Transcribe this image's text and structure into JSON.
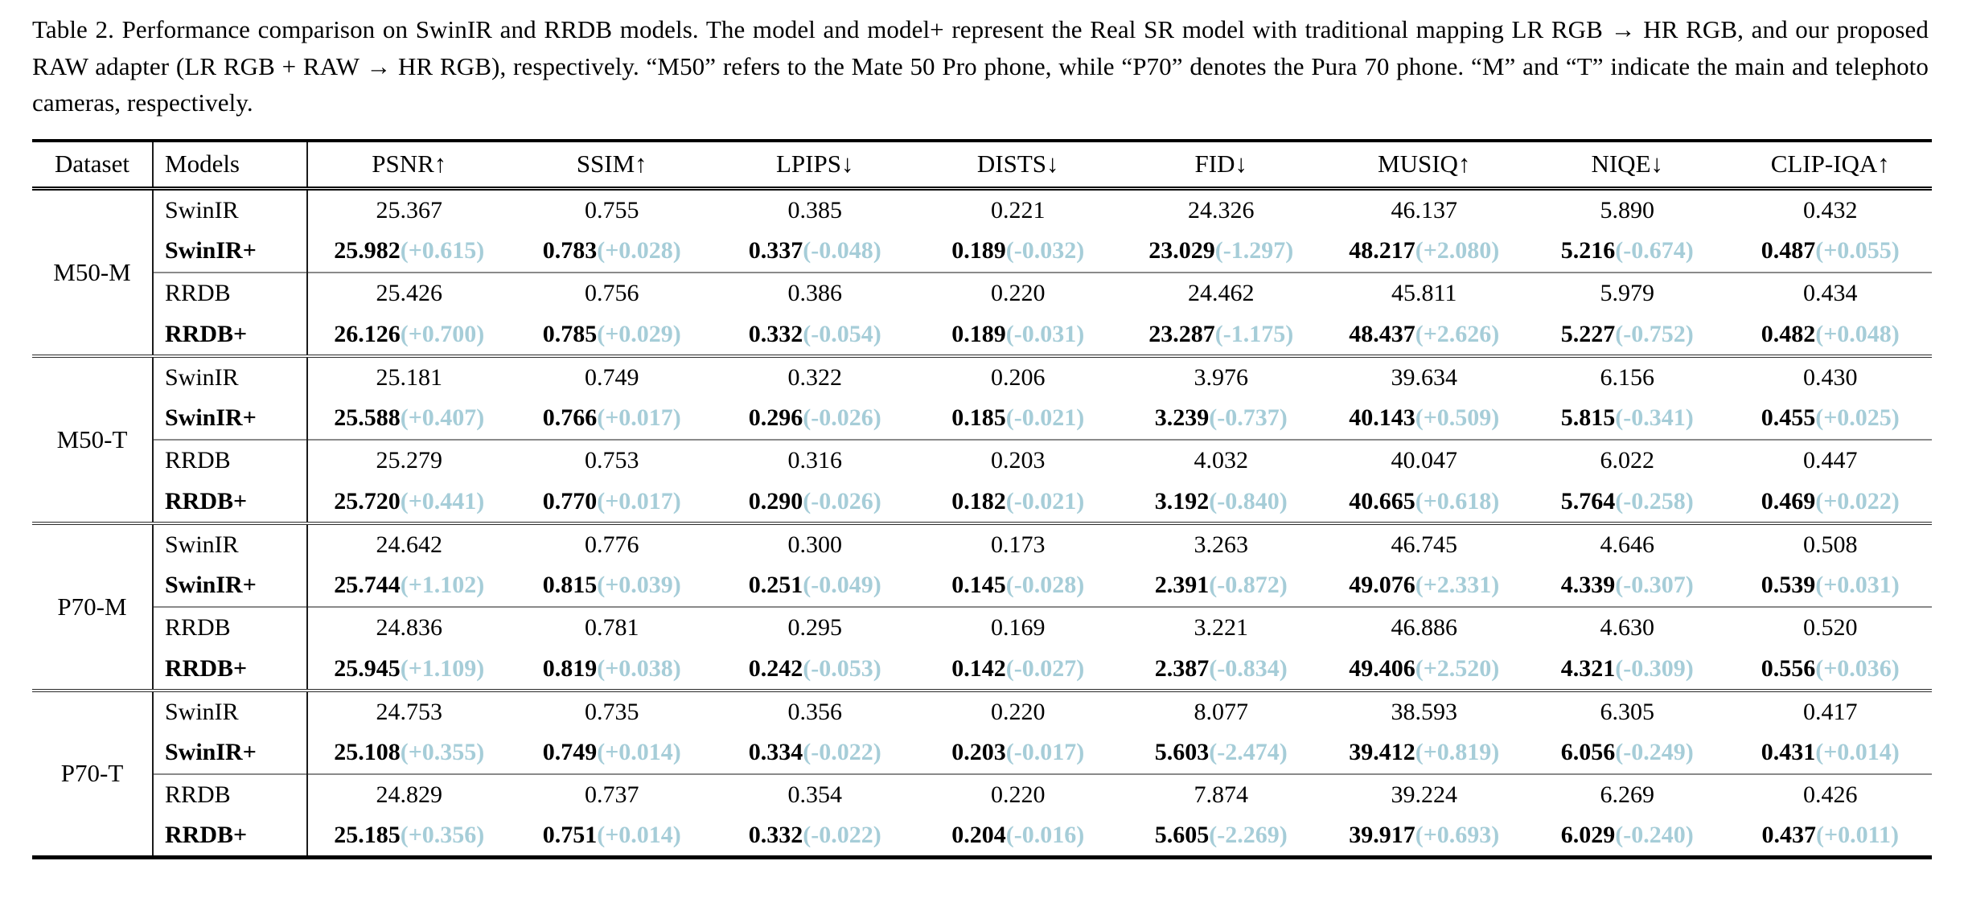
{
  "caption": {
    "text": "Table 2. Performance comparison on SwinIR and RRDB models. The model and model+ represent the Real SR model with traditional mapping LR RGB → HR RGB, and our proposed RAW adapter (LR RGB + RAW → HR RGB), respectively. “M50” refers to the Mate 50 Pro phone, while “P70” denotes the Pura 70 phone. “M” and “T” indicate the main and telephoto cameras, respectively."
  },
  "table": {
    "colors": {
      "delta": "#a6cdd8"
    },
    "columns": {
      "dataset": "Dataset",
      "models": "Models",
      "m0": "PSNR↑",
      "m1": "SSIM↑",
      "m2": "LPIPS↓",
      "m3": "DISTS↓",
      "m4": "FID↓",
      "m5": "MUSIQ↑",
      "m6": "NIQE↓",
      "m7": "CLIP-IQA↑"
    },
    "groups": [
      {
        "dataset": "M50-M",
        "blocks": [
          {
            "base": {
              "model": "SwinIR",
              "values": [
                "25.367",
                "0.755",
                "0.385",
                "0.221",
                "24.326",
                "46.137",
                "5.890",
                "0.432"
              ]
            },
            "plus": {
              "model": "SwinIR+",
              "values": [
                "25.982",
                "0.783",
                "0.337",
                "0.189",
                "23.029",
                "48.217",
                "5.216",
                "0.487"
              ],
              "deltas": [
                "(+0.615)",
                "(+0.028)",
                "(-0.048)",
                "(-0.032)",
                "(-1.297)",
                "(+2.080)",
                "(-0.674)",
                "(+0.055)"
              ]
            }
          },
          {
            "base": {
              "model": "RRDB",
              "values": [
                "25.426",
                "0.756",
                "0.386",
                "0.220",
                "24.462",
                "45.811",
                "5.979",
                "0.434"
              ]
            },
            "plus": {
              "model": "RRDB+",
              "values": [
                "26.126",
                "0.785",
                "0.332",
                "0.189",
                "23.287",
                "48.437",
                "5.227",
                "0.482"
              ],
              "deltas": [
                "(+0.700)",
                "(+0.029)",
                "(-0.054)",
                "(-0.031)",
                "(-1.175)",
                "(+2.626)",
                "(-0.752)",
                "(+0.048)"
              ]
            }
          }
        ]
      },
      {
        "dataset": "M50-T",
        "blocks": [
          {
            "base": {
              "model": "SwinIR",
              "values": [
                "25.181",
                "0.749",
                "0.322",
                "0.206",
                "3.976",
                "39.634",
                "6.156",
                "0.430"
              ]
            },
            "plus": {
              "model": "SwinIR+",
              "values": [
                "25.588",
                "0.766",
                "0.296",
                "0.185",
                "3.239",
                "40.143",
                "5.815",
                "0.455"
              ],
              "deltas": [
                "(+0.407)",
                "(+0.017)",
                "(-0.026)",
                "(-0.021)",
                "(-0.737)",
                "(+0.509)",
                "(-0.341)",
                "(+0.025)"
              ]
            }
          },
          {
            "base": {
              "model": "RRDB",
              "values": [
                "25.279",
                "0.753",
                "0.316",
                "0.203",
                "4.032",
                "40.047",
                "6.022",
                "0.447"
              ]
            },
            "plus": {
              "model": "RRDB+",
              "values": [
                "25.720",
                "0.770",
                "0.290",
                "0.182",
                "3.192",
                "40.665",
                "5.764",
                "0.469"
              ],
              "deltas": [
                "(+0.441)",
                "(+0.017)",
                "(-0.026)",
                "(-0.021)",
                "(-0.840)",
                "(+0.618)",
                "(-0.258)",
                "(+0.022)"
              ]
            }
          }
        ]
      },
      {
        "dataset": "P70-M",
        "blocks": [
          {
            "base": {
              "model": "SwinIR",
              "values": [
                "24.642",
                "0.776",
                "0.300",
                "0.173",
                "3.263",
                "46.745",
                "4.646",
                "0.508"
              ]
            },
            "plus": {
              "model": "SwinIR+",
              "values": [
                "25.744",
                "0.815",
                "0.251",
                "0.145",
                "2.391",
                "49.076",
                "4.339",
                "0.539"
              ],
              "deltas": [
                "(+1.102)",
                "(+0.039)",
                "(-0.049)",
                "(-0.028)",
                "(-0.872)",
                "(+2.331)",
                "(-0.307)",
                "(+0.031)"
              ]
            }
          },
          {
            "base": {
              "model": "RRDB",
              "values": [
                "24.836",
                "0.781",
                "0.295",
                "0.169",
                "3.221",
                "46.886",
                "4.630",
                "0.520"
              ]
            },
            "plus": {
              "model": "RRDB+",
              "values": [
                "25.945",
                "0.819",
                "0.242",
                "0.142",
                "2.387",
                "49.406",
                "4.321",
                "0.556"
              ],
              "deltas": [
                "(+1.109)",
                "(+0.038)",
                "(-0.053)",
                "(-0.027)",
                "(-0.834)",
                "(+2.520)",
                "(-0.309)",
                "(+0.036)"
              ]
            }
          }
        ]
      },
      {
        "dataset": "P70-T",
        "blocks": [
          {
            "base": {
              "model": "SwinIR",
              "values": [
                "24.753",
                "0.735",
                "0.356",
                "0.220",
                "8.077",
                "38.593",
                "6.305",
                "0.417"
              ]
            },
            "plus": {
              "model": "SwinIR+",
              "values": [
                "25.108",
                "0.749",
                "0.334",
                "0.203",
                "5.603",
                "39.412",
                "6.056",
                "0.431"
              ],
              "deltas": [
                "(+0.355)",
                "(+0.014)",
                "(-0.022)",
                "(-0.017)",
                "(-2.474)",
                "(+0.819)",
                "(-0.249)",
                "(+0.014)"
              ]
            }
          },
          {
            "base": {
              "model": "RRDB",
              "values": [
                "24.829",
                "0.737",
                "0.354",
                "0.220",
                "7.874",
                "39.224",
                "6.269",
                "0.426"
              ]
            },
            "plus": {
              "model": "RRDB+",
              "values": [
                "25.185",
                "0.751",
                "0.332",
                "0.204",
                "5.605",
                "39.917",
                "6.029",
                "0.437"
              ],
              "deltas": [
                "(+0.356)",
                "(+0.014)",
                "(-0.022)",
                "(-0.016)",
                "(-2.269)",
                "(+0.693)",
                "(-0.240)",
                "(+0.011)"
              ]
            }
          }
        ]
      }
    ]
  }
}
